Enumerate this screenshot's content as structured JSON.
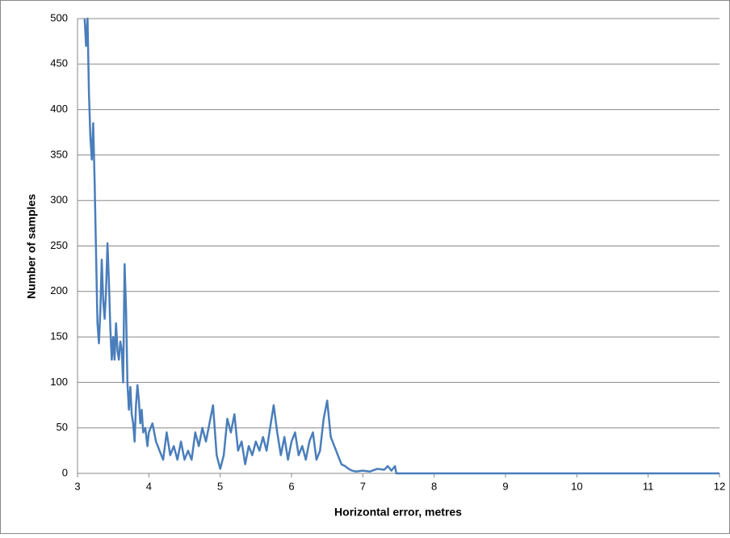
{
  "chart_data": {
    "type": "line",
    "x_label": "Horizontal error, metres",
    "y_label": "Number of samples",
    "color": "#4a7ebb",
    "grid": true,
    "xlim": [
      3,
      12
    ],
    "xticks": [
      3,
      4,
      5,
      6,
      7,
      8,
      9,
      10,
      11,
      12
    ],
    "ylim": [
      0,
      500
    ],
    "yticks": [
      0,
      50,
      100,
      150,
      200,
      250,
      300,
      350,
      400,
      450,
      500
    ],
    "x": [
      3.1,
      3.12,
      3.14,
      3.16,
      3.18,
      3.2,
      3.22,
      3.24,
      3.26,
      3.28,
      3.3,
      3.32,
      3.34,
      3.36,
      3.38,
      3.4,
      3.42,
      3.44,
      3.46,
      3.48,
      3.5,
      3.52,
      3.54,
      3.56,
      3.58,
      3.6,
      3.62,
      3.64,
      3.66,
      3.68,
      3.7,
      3.72,
      3.74,
      3.76,
      3.78,
      3.8,
      3.82,
      3.84,
      3.86,
      3.88,
      3.9,
      3.92,
      3.95,
      3.98,
      4.0,
      4.05,
      4.1,
      4.15,
      4.2,
      4.25,
      4.3,
      4.35,
      4.4,
      4.45,
      4.5,
      4.55,
      4.6,
      4.65,
      4.7,
      4.75,
      4.8,
      4.85,
      4.9,
      4.95,
      5.0,
      5.05,
      5.1,
      5.15,
      5.2,
      5.25,
      5.3,
      5.35,
      5.4,
      5.45,
      5.5,
      5.55,
      5.6,
      5.65,
      5.7,
      5.75,
      5.8,
      5.85,
      5.9,
      5.95,
      6.0,
      6.05,
      6.1,
      6.15,
      6.2,
      6.25,
      6.3,
      6.35,
      6.4,
      6.45,
      6.5,
      6.55,
      6.6,
      6.65,
      6.7,
      6.75,
      6.8,
      6.85,
      6.9,
      7.0,
      7.1,
      7.2,
      7.3,
      7.35,
      7.4,
      7.45,
      7.47,
      8,
      9,
      10,
      11,
      12
    ],
    "values": [
      500,
      470,
      500,
      420,
      370,
      345,
      385,
      320,
      240,
      165,
      143,
      180,
      235,
      190,
      170,
      200,
      253,
      210,
      160,
      125,
      150,
      125,
      165,
      135,
      125,
      145,
      135,
      100,
      230,
      180,
      100,
      70,
      95,
      65,
      55,
      35,
      75,
      97,
      80,
      55,
      70,
      45,
      50,
      30,
      45,
      55,
      35,
      25,
      15,
      45,
      20,
      30,
      15,
      35,
      15,
      25,
      15,
      45,
      30,
      50,
      35,
      55,
      75,
      20,
      5,
      20,
      60,
      45,
      65,
      25,
      35,
      10,
      30,
      20,
      35,
      25,
      40,
      25,
      50,
      75,
      45,
      20,
      40,
      15,
      35,
      45,
      20,
      30,
      15,
      35,
      45,
      15,
      25,
      60,
      80,
      40,
      30,
      20,
      10,
      8,
      5,
      3,
      2,
      3,
      2,
      5,
      4,
      8,
      3,
      8,
      0,
      0,
      0,
      0,
      0,
      0
    ]
  }
}
